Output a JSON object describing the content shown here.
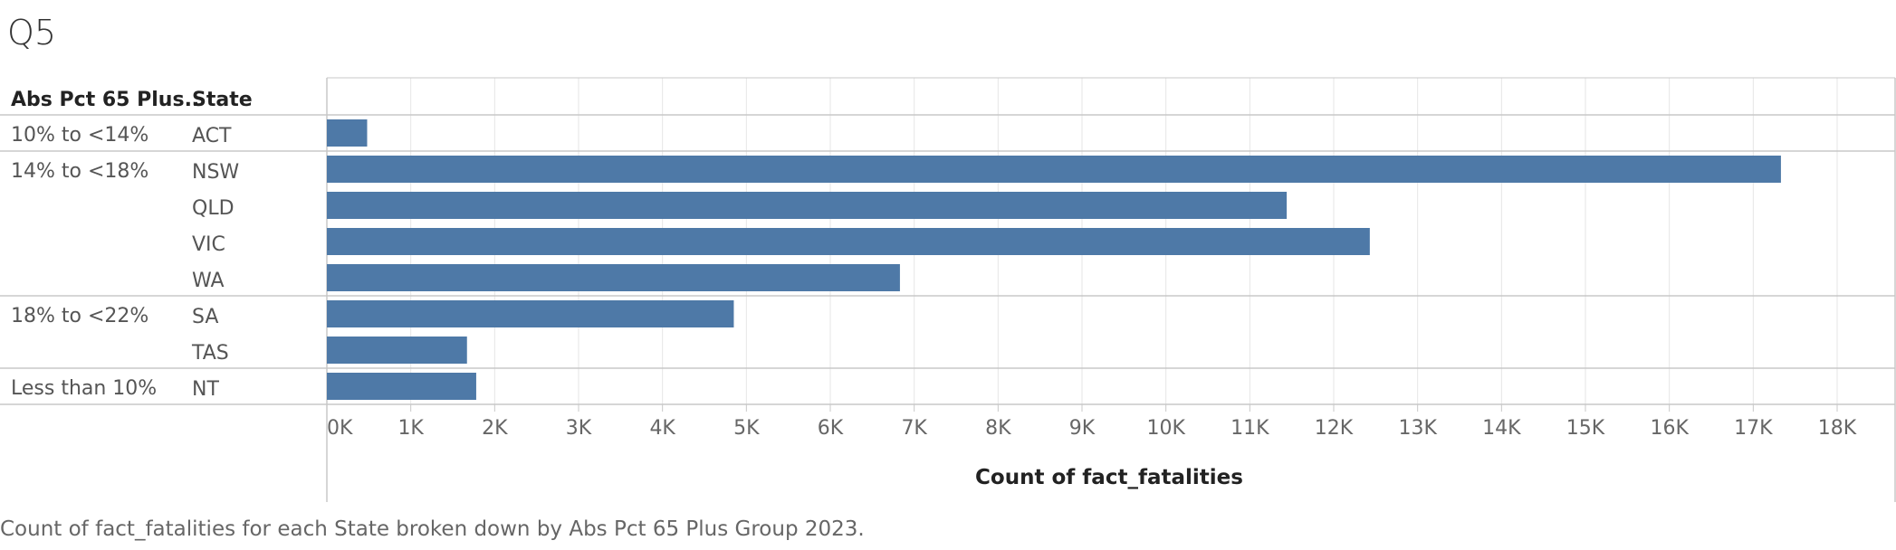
{
  "title": "Q5",
  "caption": "Count of fact_fatalities for each State broken down by Abs Pct 65 Plus Group 2023.",
  "colors": {
    "bar": "#4e79a7",
    "grid": "#e6e6e6",
    "divider": "#c8c8c8"
  },
  "chart_data": {
    "type": "bar",
    "orientation": "horizontal",
    "row_headers": [
      "Abs Pct 65 Plus..",
      "State"
    ],
    "xlabel": "Count of fact_fatalities",
    "xlim": [
      0,
      18000
    ],
    "xticks": [
      "0K",
      "1K",
      "2K",
      "3K",
      "4K",
      "5K",
      "6K",
      "7K",
      "8K",
      "9K",
      "10K",
      "11K",
      "12K",
      "13K",
      "14K",
      "15K",
      "16K",
      "17K",
      "18K"
    ],
    "grid": true,
    "groups": [
      {
        "label": "10% to <14%",
        "rows": [
          {
            "state": "ACT",
            "value": 480
          }
        ]
      },
      {
        "label": "14% to <18%",
        "rows": [
          {
            "state": "NSW",
            "value": 17330
          },
          {
            "state": "QLD",
            "value": 11440
          },
          {
            "state": "VIC",
            "value": 12430
          },
          {
            "state": "WA",
            "value": 6830
          }
        ]
      },
      {
        "label": "18% to <22%",
        "rows": [
          {
            "state": "SA",
            "value": 4850
          },
          {
            "state": "TAS",
            "value": 1670
          }
        ]
      },
      {
        "label": "Less than 10%",
        "rows": [
          {
            "state": "NT",
            "value": 1780
          }
        ]
      }
    ]
  }
}
